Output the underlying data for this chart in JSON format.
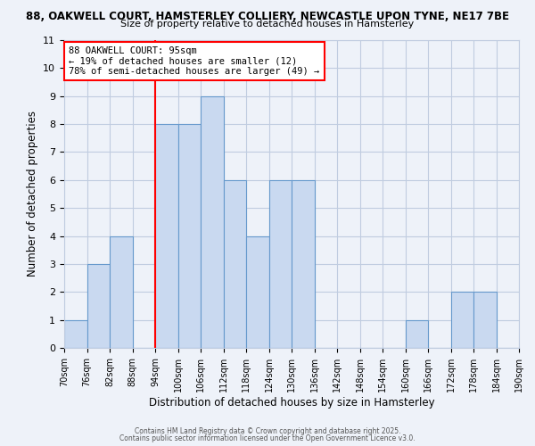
{
  "title_line1": "88, OAKWELL COURT, HAMSTERLEY COLLIERY, NEWCASTLE UPON TYNE, NE17 7BE",
  "title_line2": "Size of property relative to detached houses in Hamsterley",
  "xlabel": "Distribution of detached houses by size in Hamsterley",
  "ylabel": "Number of detached properties",
  "bins": [
    70,
    76,
    82,
    88,
    94,
    100,
    106,
    112,
    118,
    124,
    130,
    136,
    142,
    148,
    154,
    160,
    166,
    172,
    178,
    184,
    190
  ],
  "counts": [
    1,
    3,
    4,
    0,
    8,
    8,
    9,
    6,
    4,
    6,
    6,
    0,
    0,
    0,
    0,
    1,
    0,
    2,
    2,
    0
  ],
  "bar_facecolor": "#c9d9f0",
  "bar_edgecolor": "#6699cc",
  "grid_color": "#c0cce0",
  "background_color": "#eef2f9",
  "vline_x": 94,
  "vline_color": "red",
  "ylim": [
    0,
    11
  ],
  "yticks": [
    0,
    1,
    2,
    3,
    4,
    5,
    6,
    7,
    8,
    9,
    10,
    11
  ],
  "annotation_title": "88 OAKWELL COURT: 95sqm",
  "annotation_line1": "← 19% of detached houses are smaller (12)",
  "annotation_line2": "78% of semi-detached houses are larger (49) →",
  "annotation_box_color": "white",
  "annotation_box_edgecolor": "red",
  "footer1": "Contains HM Land Registry data © Crown copyright and database right 2025.",
  "footer2": "Contains public sector information licensed under the Open Government Licence v3.0."
}
